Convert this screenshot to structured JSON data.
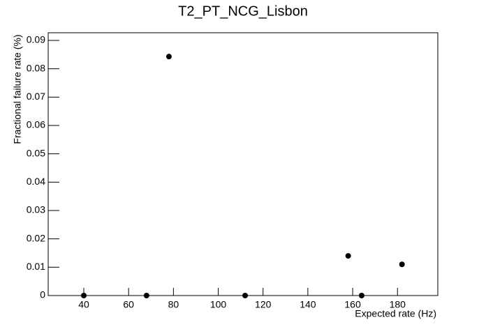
{
  "chart_data": {
    "type": "scatter",
    "title": "T2_PT_NCG_Lisbon",
    "x_label": "Expected rate (Hz)",
    "y_label": "Fractional failure rate (%)",
    "x": [
      40,
      68,
      78,
      112,
      158,
      164,
      182
    ],
    "values": [
      0,
      0,
      0.0843,
      0,
      0.014,
      0,
      0.011
    ],
    "color": "#000000",
    "xlim": [
      24.1,
      198
    ],
    "xticks": [
      40,
      60,
      80,
      100,
      120,
      140,
      160,
      180
    ],
    "ylim": [
      0,
      0.0927
    ],
    "yticks": [
      0,
      0.01,
      0.02,
      0.03,
      0.04,
      0.05,
      0.06,
      0.07,
      0.08,
      0.09
    ],
    "grid": false
  }
}
